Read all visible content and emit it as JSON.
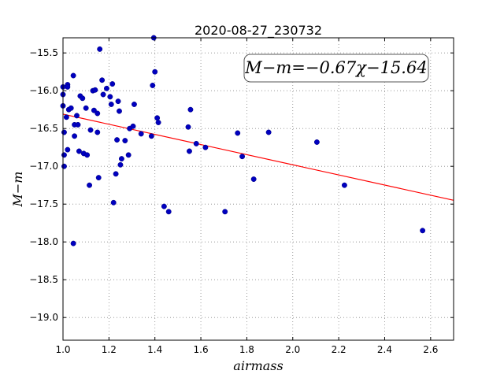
{
  "chart_data": {
    "type": "scatter",
    "title": "2020-08-27_230732",
    "xlabel": "airmass",
    "ylabel": "M−m",
    "xlim": [
      1.0,
      2.7
    ],
    "ylim": [
      -19.3,
      -15.3
    ],
    "y_inverted": true,
    "grid": true,
    "x_ticks": [
      1.0,
      1.2,
      1.4,
      1.6,
      1.8,
      2.0,
      2.2,
      2.4,
      2.6
    ],
    "x_tick_labels": [
      "1.0",
      "1.2",
      "1.4",
      "1.6",
      "1.8",
      "2.0",
      "2.2",
      "2.4",
      "2.6"
    ],
    "y_ticks": [
      -15.5,
      -16.0,
      -16.5,
      -17.0,
      -17.5,
      -18.0,
      -18.5,
      -19.0
    ],
    "y_tick_labels": [
      "−15.5",
      "−16.0",
      "−16.5",
      "−17.0",
      "−17.5",
      "−18.0",
      "−18.5",
      "−19.0"
    ],
    "annotation": "M−m=−0.67χ−15.64",
    "annotation_placement": "top-right",
    "fit": {
      "slope": -0.67,
      "intercept": -15.64
    },
    "colors": {
      "points": "#0000bf",
      "fit_line": "#ff0000",
      "grid": "#888888"
    },
    "points": [
      [
        1.0,
        -16.2
      ],
      [
        1.0,
        -16.05
      ],
      [
        1.0,
        -15.95
      ],
      [
        1.005,
        -16.55
      ],
      [
        1.005,
        -16.85
      ],
      [
        1.005,
        -17.0
      ],
      [
        1.015,
        -16.35
      ],
      [
        1.02,
        -15.92
      ],
      [
        1.02,
        -15.95
      ],
      [
        1.02,
        -16.78
      ],
      [
        1.025,
        -16.25
      ],
      [
        1.035,
        -16.23
      ],
      [
        1.045,
        -15.8
      ],
      [
        1.045,
        -18.02
      ],
      [
        1.05,
        -16.45
      ],
      [
        1.05,
        -16.6
      ],
      [
        1.06,
        -16.33
      ],
      [
        1.065,
        -16.45
      ],
      [
        1.07,
        -16.8
      ],
      [
        1.075,
        -16.07
      ],
      [
        1.085,
        -16.1
      ],
      [
        1.09,
        -16.83
      ],
      [
        1.1,
        -16.23
      ],
      [
        1.105,
        -16.85
      ],
      [
        1.115,
        -17.25
      ],
      [
        1.12,
        -16.52
      ],
      [
        1.13,
        -16.0
      ],
      [
        1.135,
        -16.26
      ],
      [
        1.14,
        -15.99
      ],
      [
        1.15,
        -16.55
      ],
      [
        1.15,
        -16.3
      ],
      [
        1.155,
        -17.15
      ],
      [
        1.16,
        -15.45
      ],
      [
        1.17,
        -15.86
      ],
      [
        1.175,
        -16.05
      ],
      [
        1.19,
        -15.97
      ],
      [
        1.205,
        -16.08
      ],
      [
        1.21,
        -16.18
      ],
      [
        1.215,
        -15.91
      ],
      [
        1.22,
        -17.48
      ],
      [
        1.23,
        -17.1
      ],
      [
        1.235,
        -16.65
      ],
      [
        1.24,
        -16.14
      ],
      [
        1.245,
        -16.27
      ],
      [
        1.25,
        -16.98
      ],
      [
        1.255,
        -16.9
      ],
      [
        1.27,
        -16.66
      ],
      [
        1.285,
        -16.85
      ],
      [
        1.29,
        -16.5
      ],
      [
        1.305,
        -16.47
      ],
      [
        1.31,
        -16.18
      ],
      [
        1.34,
        -16.57
      ],
      [
        1.385,
        -16.6
      ],
      [
        1.39,
        -15.93
      ],
      [
        1.395,
        -15.3
      ],
      [
        1.4,
        -15.75
      ],
      [
        1.41,
        -16.36
      ],
      [
        1.415,
        -16.42
      ],
      [
        1.44,
        -17.53
      ],
      [
        1.46,
        -17.6
      ],
      [
        1.545,
        -16.48
      ],
      [
        1.55,
        -16.8
      ],
      [
        1.555,
        -16.25
      ],
      [
        1.58,
        -16.7
      ],
      [
        1.62,
        -16.75
      ],
      [
        1.705,
        -17.6
      ],
      [
        1.76,
        -16.56
      ],
      [
        1.78,
        -16.87
      ],
      [
        1.83,
        -17.17
      ],
      [
        1.895,
        -16.55
      ],
      [
        2.105,
        -16.68
      ],
      [
        2.225,
        -17.25
      ],
      [
        2.565,
        -17.85
      ]
    ]
  }
}
